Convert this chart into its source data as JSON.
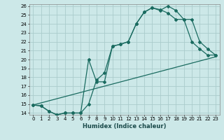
{
  "xlabel": "Humidex (Indice chaleur)",
  "bg_color": "#cce8e8",
  "grid_color": "#aacccc",
  "line_color": "#1a6b60",
  "xlim": [
    -0.5,
    23.5
  ],
  "ylim": [
    13.8,
    26.2
  ],
  "xticks": [
    0,
    1,
    2,
    3,
    4,
    5,
    6,
    7,
    8,
    9,
    10,
    11,
    12,
    13,
    14,
    15,
    16,
    17,
    18,
    19,
    20,
    21,
    22,
    23
  ],
  "yticks": [
    14,
    15,
    16,
    17,
    18,
    19,
    20,
    21,
    22,
    23,
    24,
    25,
    26
  ],
  "line1_x": [
    0,
    1,
    2,
    3,
    4,
    5,
    6,
    7,
    8,
    9,
    10,
    11,
    12,
    13,
    14,
    15,
    16,
    17,
    18,
    19,
    20,
    21,
    22,
    23
  ],
  "line1_y": [
    14.9,
    14.8,
    14.2,
    13.8,
    14.0,
    14.0,
    14.0,
    20.0,
    17.5,
    17.5,
    21.5,
    21.7,
    22.0,
    24.0,
    25.3,
    25.8,
    25.6,
    25.2,
    24.5,
    24.5,
    22.0,
    21.2,
    20.5,
    20.5
  ],
  "line2_x": [
    0,
    1,
    2,
    3,
    4,
    5,
    6,
    7,
    8,
    9,
    10,
    11,
    12,
    13,
    14,
    15,
    16,
    17,
    18,
    19,
    20,
    21,
    22,
    23
  ],
  "line2_y": [
    14.9,
    14.8,
    14.2,
    13.8,
    14.0,
    14.0,
    14.0,
    15.0,
    17.7,
    18.5,
    21.5,
    21.7,
    22.0,
    24.0,
    25.3,
    25.8,
    25.5,
    26.0,
    25.5,
    24.5,
    24.5,
    22.0,
    21.2,
    20.5
  ],
  "line3_x": [
    0,
    23
  ],
  "line3_y": [
    14.9,
    20.3
  ],
  "tick_fontsize": 5,
  "xlabel_fontsize": 6
}
